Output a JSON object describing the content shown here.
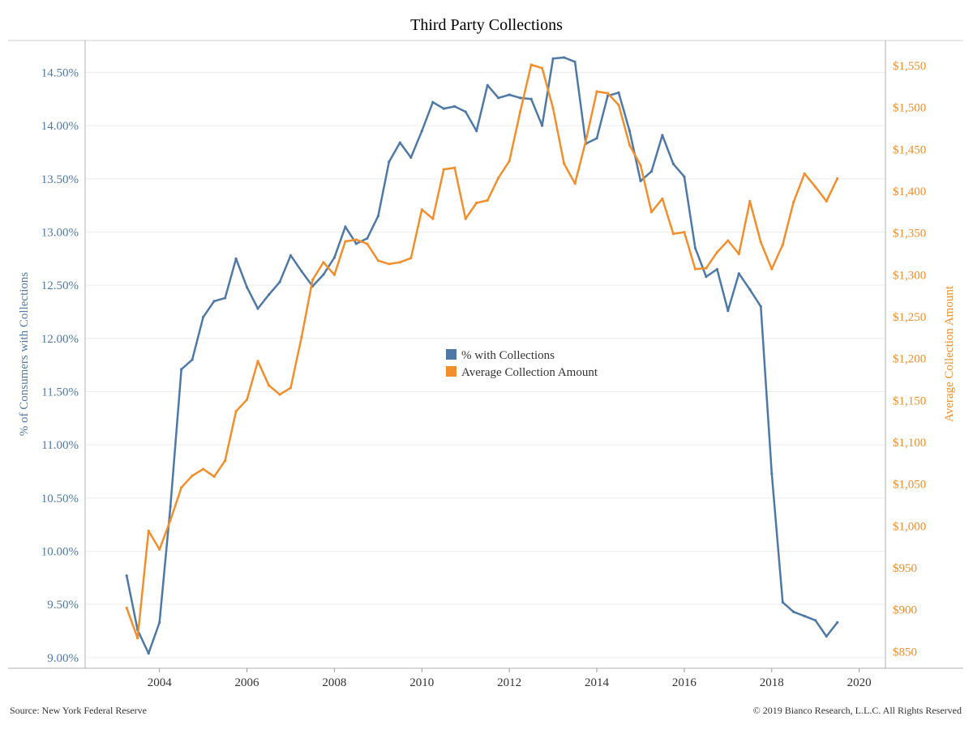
{
  "chart_data": {
    "type": "line",
    "title": "Third Party Collections",
    "ylabel_left": "% of Consumers with Collections",
    "ylabel_right": "Average Collection Amount",
    "xlabel": "",
    "x_ticks": [
      "2004",
      "2006",
      "2008",
      "2010",
      "2012",
      "2014",
      "2016",
      "2018",
      "2020"
    ],
    "y_left_ticks": [
      "9.00%",
      "9.50%",
      "10.00%",
      "10.50%",
      "11.00%",
      "11.50%",
      "12.00%",
      "12.50%",
      "13.00%",
      "13.50%",
      "14.00%",
      "14.50%"
    ],
    "y_right_ticks": [
      "$850",
      "$900",
      "$950",
      "$1,000",
      "$1,050",
      "$1,100",
      "$1,150",
      "$1,200",
      "$1,250",
      "$1,300",
      "$1,350",
      "$1,400",
      "$1,450",
      "$1,500",
      "$1,550"
    ],
    "ylim_left": [
      8.9,
      14.8
    ],
    "ylim_right": [
      830,
      1580
    ],
    "xlim": [
      2002.3,
      2020.6
    ],
    "legend_position": "center",
    "grid": "horizontal",
    "series": [
      {
        "name": "% with Collections",
        "axis": "left",
        "color": "#4e79a7",
        "x": [
          2003.25,
          2003.5,
          2003.75,
          2004.0,
          2004.25,
          2004.5,
          2004.75,
          2005.0,
          2005.25,
          2005.5,
          2005.75,
          2006.0,
          2006.25,
          2006.5,
          2006.75,
          2007.0,
          2007.25,
          2007.5,
          2007.75,
          2008.0,
          2008.25,
          2008.5,
          2008.75,
          2009.0,
          2009.25,
          2009.5,
          2009.75,
          2010.0,
          2010.25,
          2010.5,
          2010.75,
          2011.0,
          2011.25,
          2011.5,
          2011.75,
          2012.0,
          2012.25,
          2012.5,
          2012.75,
          2013.0,
          2013.25,
          2013.5,
          2013.75,
          2014.0,
          2014.25,
          2014.5,
          2014.75,
          2015.0,
          2015.25,
          2015.5,
          2015.75,
          2016.0,
          2016.25,
          2016.5,
          2016.75,
          2017.0,
          2017.25,
          2017.5,
          2017.75,
          2018.0,
          2018.25,
          2018.5,
          2018.75,
          2019.0,
          2019.25,
          2019.5
        ],
        "values": [
          9.77,
          9.26,
          9.04,
          9.33,
          10.42,
          11.71,
          11.8,
          12.2,
          12.35,
          12.38,
          12.75,
          12.48,
          12.28,
          12.41,
          12.53,
          12.78,
          12.63,
          12.49,
          12.6,
          12.76,
          13.05,
          12.89,
          12.94,
          13.15,
          13.66,
          13.84,
          13.7,
          13.95,
          14.22,
          14.16,
          14.18,
          14.13,
          13.95,
          14.38,
          14.26,
          14.29,
          14.26,
          14.25,
          14.0,
          14.63,
          14.64,
          14.6,
          13.83,
          13.88,
          14.28,
          14.31,
          13.95,
          13.48,
          13.57,
          13.91,
          13.64,
          13.52,
          12.85,
          12.58,
          12.65,
          12.26,
          12.61,
          12.46,
          12.3,
          10.73,
          9.52,
          9.43,
          9.39,
          9.35,
          9.2,
          9.33
        ]
      },
      {
        "name": "Average Collection Amount",
        "axis": "right",
        "color": "#f28e2b",
        "x": [
          2003.25,
          2003.5,
          2003.75,
          2004.0,
          2004.25,
          2004.5,
          2004.75,
          2005.0,
          2005.25,
          2005.5,
          2005.75,
          2006.0,
          2006.25,
          2006.5,
          2006.75,
          2007.0,
          2007.25,
          2007.5,
          2007.75,
          2008.0,
          2008.25,
          2008.5,
          2008.75,
          2009.0,
          2009.25,
          2009.5,
          2009.75,
          2010.0,
          2010.25,
          2010.5,
          2010.75,
          2011.0,
          2011.25,
          2011.5,
          2011.75,
          2012.0,
          2012.25,
          2012.5,
          2012.75,
          2013.0,
          2013.25,
          2013.5,
          2013.75,
          2014.0,
          2014.25,
          2014.5,
          2014.75,
          2015.0,
          2015.25,
          2015.5,
          2015.75,
          2016.0,
          2016.25,
          2016.5,
          2016.75,
          2017.0,
          2017.25,
          2017.5,
          2017.75,
          2018.0,
          2018.25,
          2018.5,
          2018.75,
          2019.0,
          2019.25,
          2019.5
        ],
        "values": [
          902,
          866,
          994,
          972,
          1007,
          1046,
          1060,
          1068,
          1059,
          1078,
          1137,
          1151,
          1197,
          1168,
          1157,
          1165,
          1226,
          1294,
          1315,
          1300,
          1340,
          1342,
          1337,
          1317,
          1313,
          1315,
          1320,
          1378,
          1367,
          1426,
          1428,
          1367,
          1386,
          1389,
          1416,
          1436,
          1495,
          1551,
          1547,
          1499,
          1433,
          1409,
          1460,
          1519,
          1517,
          1503,
          1455,
          1431,
          1375,
          1391,
          1349,
          1351,
          1307,
          1308,
          1327,
          1341,
          1325,
          1388,
          1339,
          1307,
          1336,
          1387,
          1421,
          1405,
          1388,
          1415
        ]
      }
    ]
  },
  "footer": {
    "source": "Source: New York Federal Reserve",
    "copyright": "© 2019 Bianco Research, L.L.C. All Rights Reserved"
  }
}
